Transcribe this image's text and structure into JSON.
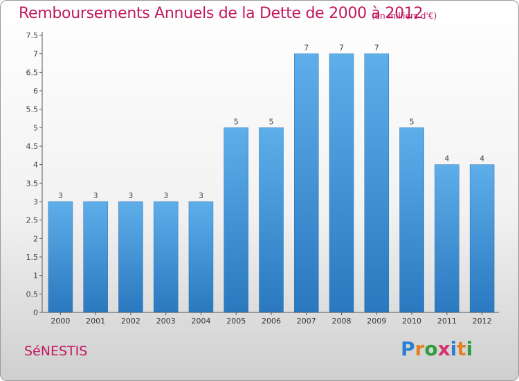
{
  "chart_data": {
    "type": "bar",
    "title": "Remboursements Annuels de la Dette de 2000 à 2012",
    "subtitle": "(en milliers d'€)",
    "xlabel": "",
    "ylabel": "",
    "categories": [
      "2000",
      "2001",
      "2002",
      "2003",
      "2004",
      "2005",
      "2006",
      "2007",
      "2008",
      "2009",
      "2010",
      "2011",
      "2012"
    ],
    "values": [
      3,
      3,
      3,
      3,
      3,
      5,
      5,
      7,
      7,
      7,
      5,
      4,
      4
    ],
    "ylim": [
      0,
      7.5
    ],
    "yticks": [
      "0",
      "0.5",
      "1",
      "1.5",
      "2",
      "2.5",
      "3",
      "3.5",
      "4",
      "4.5",
      "5",
      "5.5",
      "6",
      "6.5",
      "7",
      "7.5"
    ],
    "grid": false,
    "bar_color": "#3a8fd6"
  },
  "footer": {
    "town": "SéNESTIS",
    "logo_letters": [
      "P",
      "r",
      "o",
      "x",
      "i",
      "t",
      "i"
    ],
    "logo_colors": [
      "#2a7fd0",
      "#e67e22",
      "#2e9e3e",
      "#d6336c",
      "#2a7fd0",
      "#e67e22",
      "#2e9e3e"
    ]
  }
}
